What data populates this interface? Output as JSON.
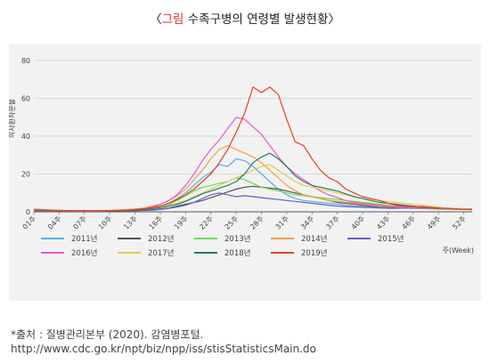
{
  "figure": {
    "title_open": "〈",
    "title_highlight": "그림",
    "title_text": " 수족구병의 연령별 발생현황",
    "title_close": "〉",
    "source_line1": "*출처 : 질병관리본부 (2020). 감염병포털.",
    "source_line2": "http://www.cdc.go.kr/npt/biz/npp/iss/stisStatisticsMain.do"
  },
  "chart_data": {
    "type": "line",
    "title": "",
    "xlabel": "주(Week)",
    "ylabel": "의사환자분율",
    "ylim": [
      0,
      80
    ],
    "yticks": [
      0,
      20,
      40,
      60,
      80
    ],
    "grid": true,
    "legend_position": "bottom",
    "x_start": 1,
    "x": [
      1,
      2,
      3,
      4,
      5,
      6,
      7,
      8,
      9,
      10,
      11,
      12,
      13,
      14,
      15,
      16,
      17,
      18,
      19,
      20,
      21,
      22,
      23,
      24,
      25,
      26,
      27,
      28,
      29,
      30,
      31,
      32,
      33,
      34,
      35,
      36,
      37,
      38,
      39,
      40,
      41,
      42,
      43,
      44,
      45,
      46,
      47,
      48,
      49,
      50,
      51,
      52,
      53
    ],
    "xtick_values": [
      1,
      4,
      7,
      10,
      13,
      16,
      19,
      22,
      25,
      28,
      31,
      34,
      37,
      40,
      43,
      46,
      49,
      52
    ],
    "xtick_labels": [
      "01주",
      "04주",
      "07주",
      "10주",
      "13주",
      "16주",
      "19주",
      "22주",
      "25주",
      "28주",
      "31주",
      "34주",
      "37주",
      "40주",
      "43주",
      "46주",
      "49주",
      "52주"
    ],
    "series": [
      {
        "name": "2011년",
        "color": "#5aaee6",
        "values": [
          1.5,
          1.2,
          1,
          0.8,
          0.6,
          0.5,
          0.5,
          0.4,
          0.4,
          0.5,
          0.6,
          0.8,
          1,
          1.5,
          2,
          3,
          4.5,
          7,
          10,
          14,
          18,
          21,
          25,
          24,
          28,
          27,
          24,
          20,
          16,
          12,
          9,
          7,
          6,
          5.5,
          5,
          4.5,
          4,
          3.5,
          3,
          2.8,
          2.5,
          2.3,
          2.1,
          2,
          1.9,
          1.8,
          1.7,
          1.6,
          1.5,
          1.4,
          1.3,
          1.2,
          1.1
        ]
      },
      {
        "name": "2012년",
        "color": "#555555",
        "values": [
          1,
          0.9,
          0.8,
          0.7,
          0.6,
          0.5,
          0.5,
          0.4,
          0.4,
          0.4,
          0.5,
          0.5,
          0.6,
          0.8,
          1,
          1.5,
          2,
          3,
          4,
          5,
          6,
          7.5,
          9,
          10.5,
          12,
          13,
          13.5,
          13,
          12.5,
          12,
          11,
          10,
          9,
          8,
          7,
          6,
          5,
          4.5,
          4,
          3.5,
          3,
          2.8,
          2.5,
          2.3,
          2.2,
          2,
          1.9,
          1.8,
          1.6,
          1.5,
          1.4,
          1.3,
          1.2
        ]
      },
      {
        "name": "2013년",
        "color": "#66dd55",
        "values": [
          1,
          0.9,
          0.8,
          0.7,
          0.6,
          0.5,
          0.5,
          0.5,
          0.5,
          0.5,
          0.6,
          0.7,
          0.8,
          1,
          1.5,
          2.5,
          4,
          6,
          8.5,
          11,
          13,
          14,
          15,
          16,
          18,
          17,
          15,
          13,
          12,
          11,
          10,
          9,
          8.5,
          8,
          7.5,
          7,
          6.5,
          6,
          5.5,
          5,
          4.5,
          4,
          3.5,
          3,
          2.8,
          2.5,
          2.3,
          2.1,
          2,
          1.8,
          1.6,
          1.5,
          1.4
        ]
      },
      {
        "name": "2014년",
        "color": "#f0a040",
        "values": [
          1.2,
          1,
          0.9,
          0.8,
          0.7,
          0.6,
          0.6,
          0.6,
          0.7,
          0.8,
          1,
          1.2,
          1.5,
          2,
          3,
          4,
          6,
          8.5,
          12,
          17,
          22,
          28,
          33,
          35,
          33,
          31,
          29,
          26,
          22,
          18,
          14,
          11,
          9,
          8,
          7,
          6,
          5.5,
          5,
          4.5,
          4,
          3.5,
          3,
          2.8,
          2.5,
          2.3,
          2.1,
          2,
          1.9,
          1.8,
          1.6,
          1.5,
          1.4,
          1.3
        ]
      },
      {
        "name": "2015년",
        "color": "#6060d0",
        "values": [
          0.8,
          0.7,
          0.6,
          0.5,
          0.5,
          0.4,
          0.4,
          0.4,
          0.4,
          0.4,
          0.5,
          0.5,
          0.6,
          0.7,
          0.9,
          1.2,
          1.8,
          2.5,
          3.5,
          5,
          7,
          9,
          10,
          9,
          8,
          8.5,
          8,
          7.5,
          7,
          6.5,
          6,
          5.5,
          5,
          4.5,
          4,
          3.5,
          3,
          2.8,
          2.6,
          2.4,
          2.2,
          2,
          1.9,
          1.8,
          2,
          2.5,
          2.8,
          2.5,
          2.2,
          2,
          1.8,
          1.6,
          1.5
        ]
      },
      {
        "name": "2016년",
        "color": "#ee55cc",
        "values": [
          0.5,
          0.5,
          0.5,
          0.4,
          0.4,
          0.4,
          0.4,
          0.4,
          0.4,
          0.5,
          0.6,
          0.8,
          1,
          1.5,
          2.5,
          4,
          6,
          9,
          14,
          20,
          27,
          33,
          38,
          44,
          50,
          49,
          45,
          41,
          35,
          29,
          24,
          20,
          17,
          14,
          11,
          9,
          7.5,
          6,
          5,
          4.5,
          4,
          3.5,
          3,
          2.8,
          2.5,
          2.3,
          2.1,
          2,
          1.9,
          1.8,
          1.6,
          1.5,
          1.4
        ]
      },
      {
        "name": "2017년",
        "color": "#e8c84a",
        "values": [
          0.6,
          0.6,
          0.5,
          0.5,
          0.5,
          0.5,
          0.5,
          0.5,
          0.5,
          0.6,
          0.7,
          0.8,
          1,
          1.3,
          1.8,
          2.5,
          3.5,
          4.5,
          6,
          8,
          10,
          12,
          14,
          16,
          18,
          20,
          22,
          24,
          25,
          22,
          19,
          16,
          14,
          13,
          12,
          11,
          10,
          9,
          8,
          7,
          6.5,
          6,
          5.5,
          5,
          4.5,
          4,
          3.5,
          3,
          2.5,
          2,
          1.8,
          1.6,
          1.5
        ]
      },
      {
        "name": "2018년",
        "color": "#1f7f6e",
        "values": [
          0.7,
          0.6,
          0.6,
          0.5,
          0.5,
          0.5,
          0.5,
          0.5,
          0.5,
          0.5,
          0.6,
          0.7,
          0.9,
          1.2,
          1.6,
          2.2,
          3,
          4,
          5.5,
          7.5,
          9.5,
          11,
          12.5,
          14,
          16,
          20,
          26,
          29,
          31,
          28,
          24,
          19,
          16,
          14,
          13,
          12,
          11,
          9.5,
          8,
          7,
          6,
          5,
          4.5,
          4,
          3.5,
          3,
          2.5,
          2.2,
          2,
          1.8,
          1.5,
          1.3,
          1.2
        ]
      },
      {
        "name": "2019년",
        "color": "#e8401c",
        "values": [
          1,
          0.9,
          0.8,
          0.7,
          0.6,
          0.5,
          0.5,
          0.5,
          0.5,
          0.6,
          0.7,
          0.9,
          1.2,
          1.6,
          2.2,
          3,
          4.5,
          6.5,
          9,
          12,
          16,
          20,
          26,
          33,
          42,
          52,
          66,
          63,
          66,
          62,
          49,
          37,
          35,
          28,
          22,
          18,
          16,
          12,
          10,
          8,
          7,
          6,
          4.5,
          3.5,
          3,
          2.7,
          2.4,
          2.2,
          2,
          1.8,
          1.5,
          1.3,
          1.2
        ]
      }
    ]
  }
}
